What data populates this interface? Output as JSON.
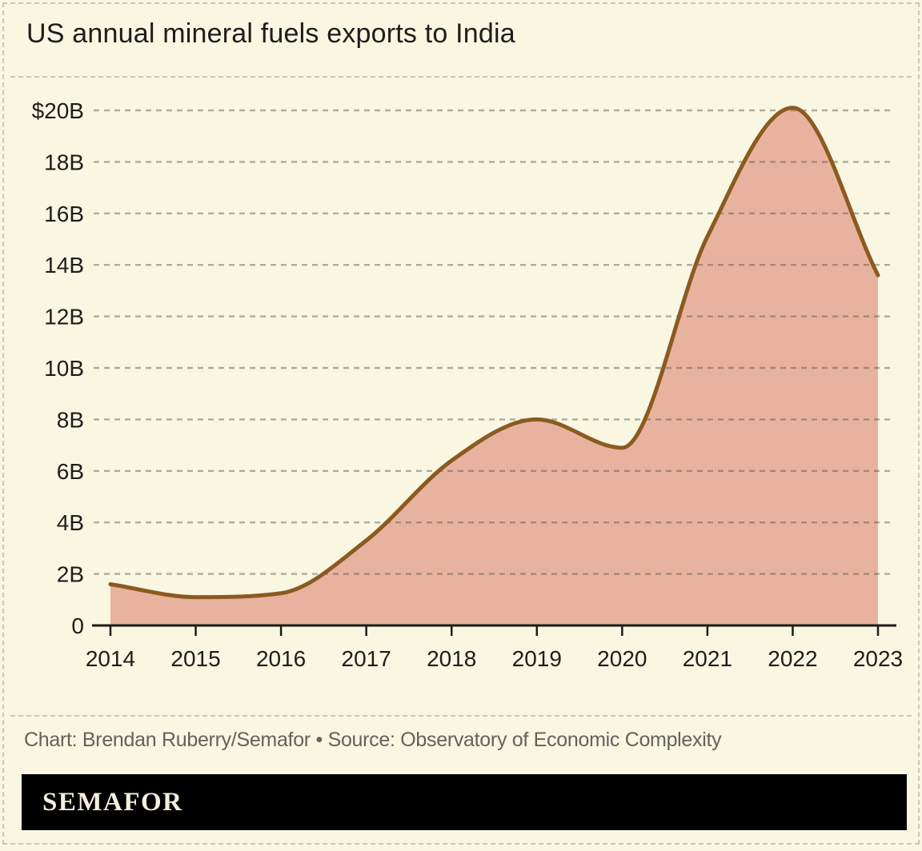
{
  "title": "US annual mineral fuels exports to India",
  "footer": {
    "credit": "Chart: Brendan Ruberry/Semafor • Source: Observatory of Economic Complexity",
    "logo": "SEMAFOR"
  },
  "colors": {
    "background": "#f9f6e2",
    "area_fill": "#e8b39e",
    "line": "#8b5a20",
    "grid": "#55504a",
    "axis": "#1d1d1b",
    "credit_text": "#63625b",
    "logo_bg": "#000000",
    "logo_text": "#f3efdb"
  },
  "chart_data": {
    "type": "area",
    "title": "US annual mineral fuels exports to India",
    "x": [
      2014,
      2015,
      2016,
      2017,
      2018,
      2019,
      2020,
      2021,
      2022,
      2023
    ],
    "values": [
      1.6,
      1.1,
      1.25,
      3.3,
      6.4,
      8.0,
      6.9,
      15.1,
      20.1,
      13.6
    ],
    "units": "USD billions",
    "xlabel": "",
    "ylabel": "",
    "xlim": [
      2014,
      2023
    ],
    "ylim": [
      0,
      20
    ],
    "ytick_step": 2,
    "ytick_labels": [
      "0",
      "2B",
      "4B",
      "6B",
      "8B",
      "10B",
      "12B",
      "14B",
      "16B",
      "18B",
      "$20B"
    ],
    "xtick_labels": [
      "2014",
      "2015",
      "2016",
      "2017",
      "2018",
      "2019",
      "2020",
      "2021",
      "2022",
      "2023"
    ],
    "grid": "horizontal-dashed",
    "legend": false,
    "curve": "smooth-monotone"
  }
}
